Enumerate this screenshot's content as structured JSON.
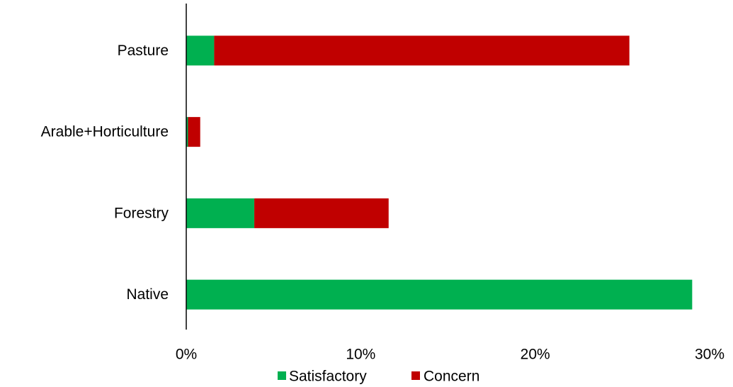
{
  "chart_data": {
    "type": "bar",
    "orientation": "horizontal",
    "stacked": true,
    "categories": [
      "Native",
      "Forestry",
      "Arable+Horticulture",
      "Pasture"
    ],
    "series": [
      {
        "name": "Satisfactory",
        "color": "#00b050",
        "values": [
          29.0,
          3.9,
          0.1,
          1.6
        ]
      },
      {
        "name": "Concern",
        "color": "#c00000",
        "values": [
          0.0,
          7.7,
          0.7,
          23.8
        ]
      }
    ],
    "xlim": [
      0,
      30
    ],
    "xticks": [
      0,
      10,
      20,
      30
    ],
    "tick_labels": [
      "0%",
      "10%",
      "20%",
      "30%"
    ],
    "grid": false,
    "legend_position": "bottom"
  }
}
